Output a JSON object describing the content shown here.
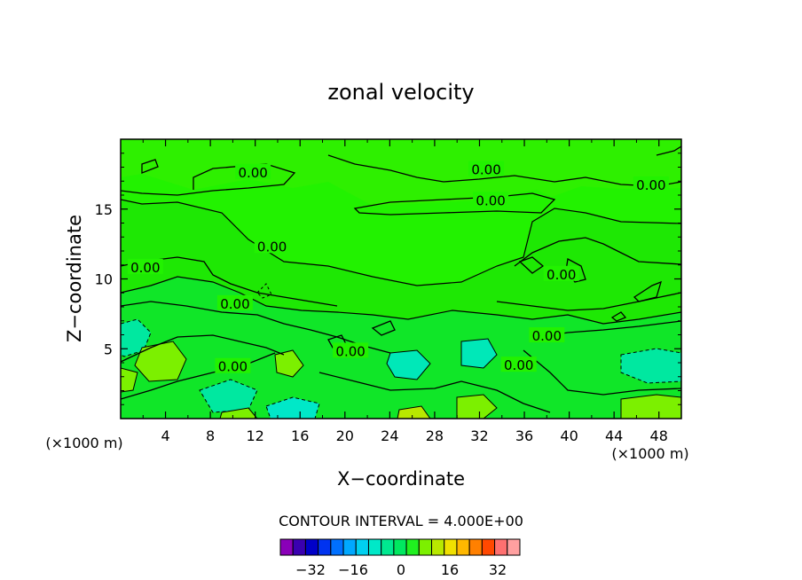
{
  "chart_data": {
    "type": "heatmap",
    "title": "zonal velocity",
    "xlabel": "X−coordinate",
    "ylabel": "Z−coordinate",
    "x_unit_label": "(×1000 m)",
    "x_unit_label_right": "(×1000 m)",
    "xlim": [
      0,
      50
    ],
    "ylim": [
      0,
      20
    ],
    "x_ticks": [
      "4",
      "8",
      "12",
      "16",
      "20",
      "24",
      "28",
      "32",
      "36",
      "40",
      "44",
      "48"
    ],
    "y_ticks": [
      "5",
      "10",
      "15"
    ],
    "x_tick_values": [
      4,
      8,
      12,
      16,
      20,
      24,
      28,
      32,
      36,
      40,
      44,
      48
    ],
    "y_tick_values": [
      5,
      10,
      15
    ],
    "contour_label": "0.00",
    "contour_labels": [
      {
        "text": "0.00",
        "x": 11.8,
        "y": 17.6
      },
      {
        "text": "0.00",
        "x": 32.6,
        "y": 17.8
      },
      {
        "text": "0.00",
        "x": 33.0,
        "y": 15.6
      },
      {
        "text": "0.00",
        "x": 47.3,
        "y": 16.7
      },
      {
        "text": "0.00",
        "x": 13.5,
        "y": 12.3
      },
      {
        "text": "0.00",
        "x": 2.2,
        "y": 10.8
      },
      {
        "text": "0.00",
        "x": 10.2,
        "y": 8.2
      },
      {
        "text": "0.00",
        "x": 38.0,
        "y": 5.9
      },
      {
        "text": "0.00",
        "x": 39.3,
        "y": 10.3
      },
      {
        "text": "0.00",
        "x": 20.5,
        "y": 4.8
      },
      {
        "text": "0.00",
        "x": 10.0,
        "y": 3.7
      },
      {
        "text": "0.00",
        "x": 35.5,
        "y": 3.8
      }
    ],
    "contour_interval_text": "CONTOUR INTERVAL = 4.000E+00",
    "colorbar": {
      "colors": [
        "#8a00b8",
        "#3a00b0",
        "#0000c8",
        "#0033f0",
        "#0070ff",
        "#00a8ff",
        "#00d0f0",
        "#00e8c8",
        "#00e890",
        "#00e860",
        "#20f020",
        "#7cf000",
        "#b8e800",
        "#f0e000",
        "#ffb800",
        "#ff8000",
        "#ff4800",
        "#ff7070",
        "#ffa0a0"
      ],
      "ticks": [
        "−32",
        "−16",
        "0",
        "16",
        "32"
      ]
    },
    "fields": {
      "background_color": "#22f200",
      "bands": [
        {
          "value": 0,
          "color": "#22f200"
        },
        {
          "value": -4,
          "color": "#00e860"
        },
        {
          "value": -8,
          "color": "#00e890"
        },
        {
          "value": -12,
          "color": "#00e8c8"
        },
        {
          "value": 4,
          "color": "#7cf000"
        },
        {
          "value": 8,
          "color": "#b8e800"
        }
      ]
    }
  }
}
